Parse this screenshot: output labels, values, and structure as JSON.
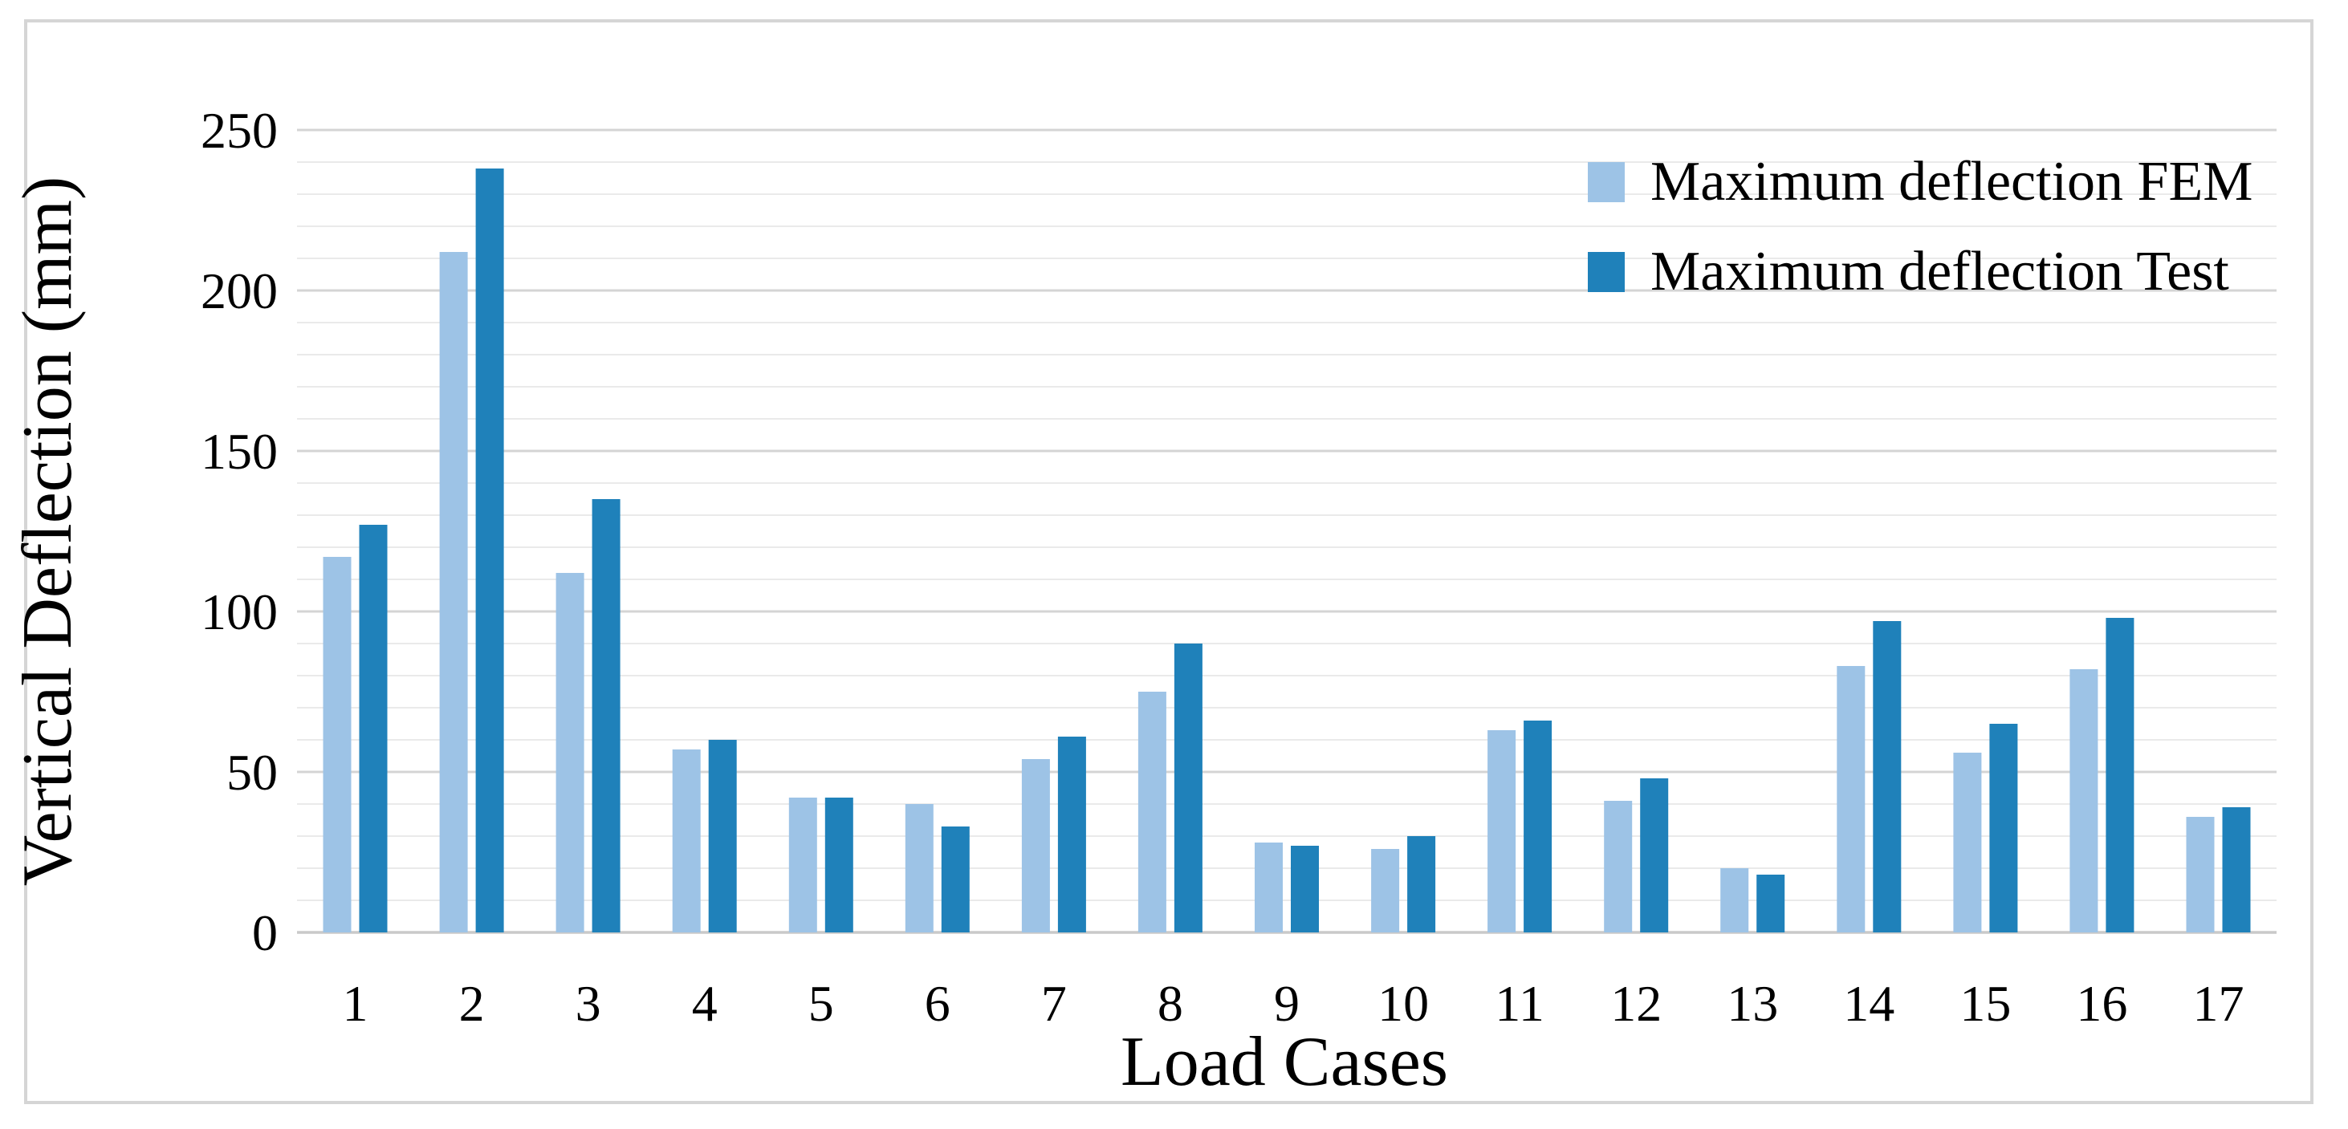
{
  "figure": {
    "background": "#FFFFFF",
    "border_color": "#D5D5D5"
  },
  "chart_data": {
    "type": "bar",
    "title": "",
    "xlabel": "Load Cases",
    "ylabel": "Vertical Deflection (mm)",
    "categories": [
      "1",
      "2",
      "3",
      "4",
      "5",
      "6",
      "7",
      "8",
      "9",
      "10",
      "11",
      "12",
      "13",
      "14",
      "15",
      "16",
      "17"
    ],
    "series": [
      {
        "name": "Maximum deflection FEM",
        "color": "#9DC3E6",
        "values": [
          117,
          212,
          112,
          57,
          42,
          40,
          54,
          75,
          28,
          26,
          63,
          41,
          20,
          83,
          56,
          82,
          36
        ]
      },
      {
        "name": "Maximum deflection Test",
        "color": "#1F81BA",
        "values": [
          127,
          238,
          135,
          60,
          42,
          33,
          61,
          90,
          27,
          30,
          66,
          48,
          18,
          97,
          65,
          98,
          39
        ]
      }
    ],
    "ylim": [
      0,
      250
    ],
    "y_ticks": [
      0,
      50,
      100,
      150,
      200,
      250
    ],
    "y_minor_step": 10,
    "grid": {
      "show": true,
      "minor_color": "#EAEAEA",
      "major_color": "#D4D4D4",
      "baseline_color": "#C9C9C9"
    },
    "legend_position": "top-right"
  }
}
